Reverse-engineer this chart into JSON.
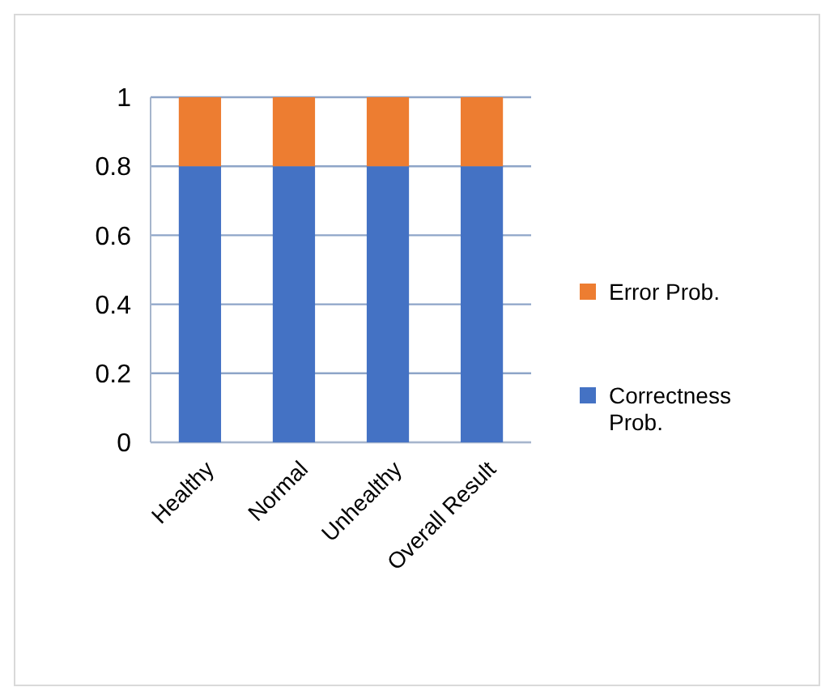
{
  "chart_data": {
    "type": "bar",
    "stacked": true,
    "categories": [
      "Healthy",
      "Normal",
      "Unhealthy",
      "Overall Result"
    ],
    "series": [
      {
        "name": "Correctness Prob.",
        "color": "#4472c4",
        "values": [
          0.8,
          0.8,
          0.8,
          0.8
        ]
      },
      {
        "name": "Error Prob.",
        "color": "#ed7d31",
        "values": [
          0.2,
          0.2,
          0.2,
          0.2
        ]
      }
    ],
    "ylim": [
      0,
      1
    ],
    "yticks": [
      0,
      0.2,
      0.4,
      0.6,
      0.8,
      1
    ],
    "grid": "y",
    "legend": "right"
  }
}
